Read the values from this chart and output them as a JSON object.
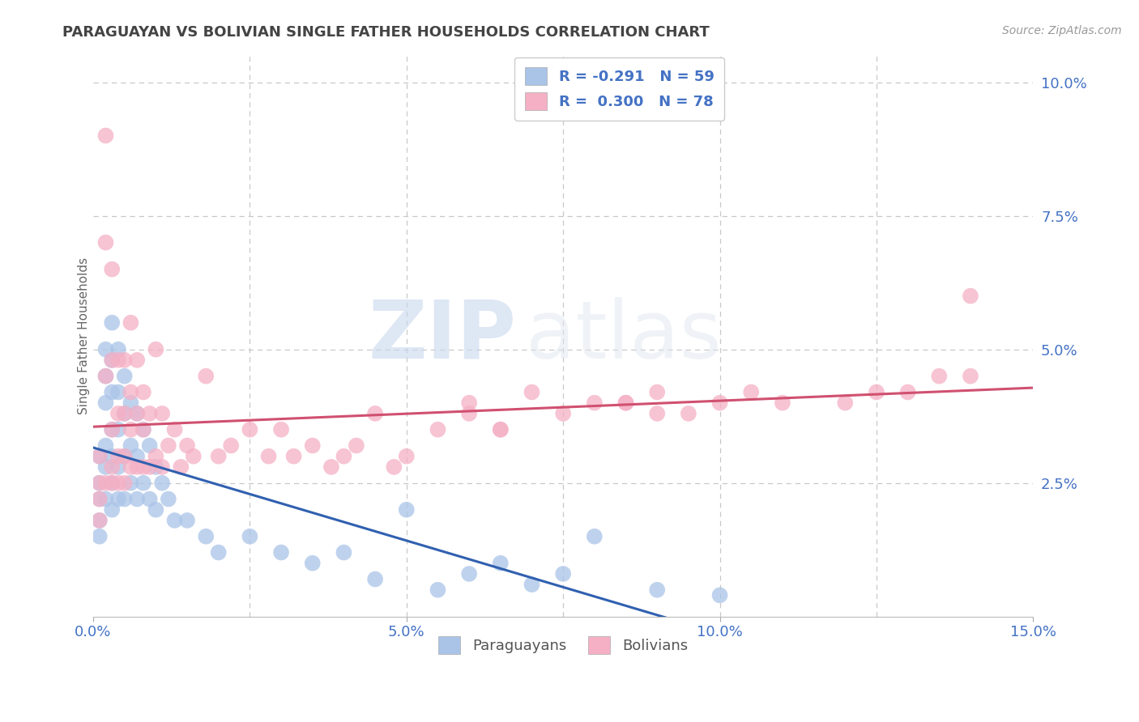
{
  "title": "PARAGUAYAN VS BOLIVIAN SINGLE FATHER HOUSEHOLDS CORRELATION CHART",
  "source": "Source: ZipAtlas.com",
  "ylabel": "Single Father Households",
  "xlim": [
    0.0,
    0.15
  ],
  "ylim": [
    0.0,
    0.105
  ],
  "paraguayan_color": "#aac4e8",
  "bolivian_color": "#f5b0c5",
  "paraguayan_line_color": "#3060b0",
  "bolivian_line_color": "#d05070",
  "watermark_zip": "ZIP",
  "watermark_atlas": "atlas",
  "background_color": "#ffffff",
  "grid_color": "#c8c8c8",
  "title_color": "#444444",
  "axis_tick_color": "#4472c4",
  "ylabel_color": "#666666",
  "paraguayan_x": [
    0.001,
    0.001,
    0.001,
    0.001,
    0.001,
    0.002,
    0.002,
    0.002,
    0.002,
    0.002,
    0.002,
    0.003,
    0.003,
    0.003,
    0.003,
    0.003,
    0.003,
    0.003,
    0.004,
    0.004,
    0.004,
    0.004,
    0.004,
    0.005,
    0.005,
    0.005,
    0.005,
    0.006,
    0.006,
    0.006,
    0.007,
    0.007,
    0.007,
    0.008,
    0.008,
    0.009,
    0.009,
    0.01,
    0.01,
    0.011,
    0.012,
    0.013,
    0.015,
    0.018,
    0.02,
    0.025,
    0.03,
    0.035,
    0.04,
    0.045,
    0.05,
    0.055,
    0.06,
    0.065,
    0.07,
    0.075,
    0.08,
    0.09,
    0.1
  ],
  "paraguayan_y": [
    0.03,
    0.025,
    0.022,
    0.018,
    0.015,
    0.05,
    0.045,
    0.04,
    0.032,
    0.028,
    0.022,
    0.055,
    0.048,
    0.042,
    0.035,
    0.03,
    0.025,
    0.02,
    0.05,
    0.042,
    0.035,
    0.028,
    0.022,
    0.045,
    0.038,
    0.03,
    0.022,
    0.04,
    0.032,
    0.025,
    0.038,
    0.03,
    0.022,
    0.035,
    0.025,
    0.032,
    0.022,
    0.028,
    0.02,
    0.025,
    0.022,
    0.018,
    0.018,
    0.015,
    0.012,
    0.015,
    0.012,
    0.01,
    0.012,
    0.007,
    0.02,
    0.005,
    0.008,
    0.01,
    0.006,
    0.008,
    0.015,
    0.005,
    0.004
  ],
  "bolivian_x": [
    0.001,
    0.001,
    0.001,
    0.001,
    0.002,
    0.002,
    0.002,
    0.002,
    0.003,
    0.003,
    0.003,
    0.003,
    0.003,
    0.004,
    0.004,
    0.004,
    0.004,
    0.005,
    0.005,
    0.005,
    0.005,
    0.006,
    0.006,
    0.006,
    0.006,
    0.007,
    0.007,
    0.007,
    0.008,
    0.008,
    0.008,
    0.009,
    0.009,
    0.01,
    0.01,
    0.011,
    0.011,
    0.012,
    0.013,
    0.014,
    0.015,
    0.016,
    0.018,
    0.02,
    0.022,
    0.025,
    0.028,
    0.03,
    0.032,
    0.035,
    0.038,
    0.04,
    0.042,
    0.045,
    0.048,
    0.05,
    0.055,
    0.06,
    0.065,
    0.07,
    0.075,
    0.08,
    0.085,
    0.09,
    0.095,
    0.1,
    0.105,
    0.11,
    0.12,
    0.125,
    0.13,
    0.135,
    0.14,
    0.14,
    0.085,
    0.09,
    0.06,
    0.065
  ],
  "bolivian_y": [
    0.03,
    0.025,
    0.022,
    0.018,
    0.09,
    0.07,
    0.045,
    0.025,
    0.065,
    0.048,
    0.035,
    0.028,
    0.025,
    0.048,
    0.038,
    0.03,
    0.025,
    0.048,
    0.038,
    0.03,
    0.025,
    0.055,
    0.042,
    0.035,
    0.028,
    0.048,
    0.038,
    0.028,
    0.042,
    0.035,
    0.028,
    0.038,
    0.028,
    0.05,
    0.03,
    0.038,
    0.028,
    0.032,
    0.035,
    0.028,
    0.032,
    0.03,
    0.045,
    0.03,
    0.032,
    0.035,
    0.03,
    0.035,
    0.03,
    0.032,
    0.028,
    0.03,
    0.032,
    0.038,
    0.028,
    0.03,
    0.035,
    0.04,
    0.035,
    0.042,
    0.038,
    0.04,
    0.04,
    0.042,
    0.038,
    0.04,
    0.042,
    0.04,
    0.04,
    0.042,
    0.042,
    0.045,
    0.045,
    0.06,
    0.04,
    0.038,
    0.038,
    0.035
  ]
}
